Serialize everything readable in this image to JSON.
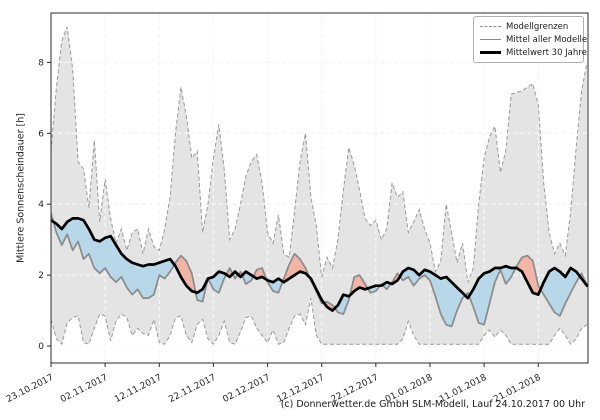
{
  "figure": {
    "background": "#ffffff",
    "ylabel": "Mittlere Sonnenscheindauer [h]",
    "footer": "(c) Donnerwetter.de GmbH SLM-Modell, Lauf 24.10.2017 00 Uhr"
  },
  "legend": {
    "position": "upper right",
    "items": [
      {
        "label": "Modellgrenzen",
        "style": "dashed-gray"
      },
      {
        "label": "Mittel aller Modelle",
        "style": "solid-gray"
      },
      {
        "label": "Mittelwert 30 Jahre",
        "style": "solid-black-bold"
      }
    ]
  },
  "colors": {
    "band_fill": "#e4e4e4",
    "band_edge_dashed": "#999999",
    "above_mean_fill": "#f1b5a7",
    "below_mean_fill": "#b8d7e8",
    "model_mean_line": "#8a8a8a",
    "climate_mean_line": "#000000",
    "grid": "#d6d6d6",
    "spine": "#2b2b2b"
  },
  "chart_data": {
    "type": "line",
    "title": "",
    "xlabel": "",
    "ylabel": "Mittlere Sonnenscheindauer [h]",
    "grid": true,
    "legend_position": "upper right",
    "ylim": [
      -0.5,
      9.4
    ],
    "y_ticks": [
      0,
      2,
      4,
      6,
      8
    ],
    "x_start_date": "23.10.2017",
    "x_resolution": "daily",
    "x_tick_days": [
      0,
      10,
      20,
      30,
      40,
      50,
      60,
      70,
      80,
      90
    ],
    "x_tick_labels": [
      "23.10.2017",
      "02.11.2017",
      "12.11.2017",
      "22.11.2017",
      "02.12.2017",
      "12.12.2017",
      "22.12.2017",
      "01.01.2018",
      "11.01.2018",
      "21.01.2018"
    ],
    "series": [
      {
        "name": "Modellgrenzen (obere Grenze)",
        "style": "dashed",
        "color": "#999999",
        "values": [
          5.5,
          7.3,
          8.6,
          9.0,
          7.8,
          5.2,
          5.0,
          3.9,
          5.8,
          3.5,
          4.7,
          3.6,
          2.9,
          3.3,
          2.7,
          3.2,
          3.3,
          2.6,
          3.3,
          2.8,
          2.7,
          3.3,
          4.2,
          6.0,
          7.3,
          6.5,
          5.3,
          5.5,
          3.2,
          4.0,
          5.3,
          6.25,
          5.0,
          3.0,
          3.3,
          4.0,
          4.8,
          5.2,
          5.4,
          4.6,
          3.2,
          2.9,
          3.7,
          2.6,
          2.5,
          3.8,
          5.2,
          6.0,
          4.2,
          3.4,
          1.95,
          2.5,
          2.2,
          3.0,
          4.4,
          5.6,
          5.1,
          4.4,
          3.6,
          3.4,
          3.55,
          3.0,
          3.3,
          4.6,
          4.2,
          4.35,
          3.2,
          3.5,
          3.85,
          3.3,
          2.9,
          2.1,
          2.4,
          4.0,
          3.2,
          2.35,
          2.9,
          1.8,
          2.2,
          4.0,
          5.3,
          5.9,
          6.2,
          4.9,
          5.5,
          7.1,
          7.15,
          7.2,
          7.3,
          7.4,
          6.8,
          4.6,
          3.2,
          2.6,
          2.9,
          2.55,
          3.8,
          5.6,
          7.2,
          8.0
        ]
      },
      {
        "name": "Modellgrenzen (untere Grenze)",
        "style": "dashed",
        "color": "#999999",
        "values": [
          0.75,
          0.2,
          0.05,
          0.65,
          0.8,
          0.85,
          0.1,
          0.05,
          0.5,
          0.9,
          0.85,
          0.15,
          0.7,
          0.9,
          0.8,
          0.3,
          0.5,
          0.35,
          0.3,
          0.75,
          0.1,
          0.05,
          0.3,
          0.8,
          0.85,
          0.3,
          0.1,
          0.6,
          0.75,
          0.2,
          0.05,
          0.3,
          0.7,
          0.1,
          0.05,
          0.4,
          0.8,
          0.85,
          0.5,
          0.3,
          0.1,
          0.45,
          0.05,
          0.1,
          0.5,
          0.85,
          0.9,
          0.6,
          1.35,
          0.3,
          0.05,
          0.05,
          0.05,
          0.05,
          0.05,
          0.05,
          0.05,
          0.05,
          0.05,
          0.05,
          0.05,
          0.05,
          0.05,
          0.05,
          0.05,
          0.2,
          0.7,
          0.3,
          0.05,
          0.05,
          0.05,
          0.05,
          0.05,
          0.05,
          0.05,
          0.05,
          0.05,
          0.05,
          0.05,
          0.05,
          0.3,
          0.45,
          0.25,
          0.45,
          0.3,
          0.05,
          0.05,
          0.05,
          0.05,
          0.05,
          0.05,
          0.05,
          0.05,
          0.3,
          0.5,
          0.3,
          0.05,
          0.2,
          0.5,
          0.6
        ]
      },
      {
        "name": "Mittel aller Modelle",
        "style": "solid",
        "color": "#8a8a8a",
        "values": [
          3.75,
          3.2,
          2.85,
          3.15,
          2.7,
          2.95,
          2.45,
          2.6,
          2.2,
          2.05,
          2.2,
          1.95,
          1.8,
          1.95,
          1.65,
          1.45,
          1.6,
          1.35,
          1.35,
          1.45,
          2.0,
          1.9,
          2.1,
          2.35,
          2.55,
          2.4,
          2.05,
          1.3,
          1.25,
          1.9,
          1.6,
          1.5,
          1.9,
          2.2,
          1.9,
          2.1,
          1.75,
          1.85,
          2.15,
          2.2,
          1.8,
          1.55,
          1.5,
          1.9,
          2.3,
          2.6,
          2.45,
          2.2,
          1.85,
          1.55,
          1.2,
          1.25,
          1.15,
          0.95,
          0.9,
          1.3,
          1.95,
          2.0,
          1.75,
          1.5,
          1.55,
          1.75,
          1.6,
          1.8,
          2.05,
          1.85,
          1.95,
          1.7,
          1.9,
          2.0,
          1.85,
          1.4,
          0.9,
          0.6,
          0.55,
          1.0,
          1.35,
          1.5,
          1.1,
          0.65,
          0.6,
          1.2,
          1.8,
          2.15,
          1.75,
          1.95,
          2.25,
          2.5,
          2.55,
          2.4,
          1.7,
          1.45,
          1.2,
          0.95,
          0.85,
          1.2,
          1.5,
          1.8,
          2.05,
          1.7
        ]
      },
      {
        "name": "Mittelwert 30 Jahre",
        "style": "solid-bold",
        "color": "#000000",
        "values": [
          3.55,
          3.45,
          3.3,
          3.5,
          3.6,
          3.6,
          3.55,
          3.3,
          3.0,
          2.95,
          3.05,
          3.1,
          2.85,
          2.6,
          2.45,
          2.35,
          2.3,
          2.25,
          2.3,
          2.3,
          2.35,
          2.4,
          2.45,
          2.25,
          1.95,
          1.7,
          1.55,
          1.5,
          1.6,
          1.9,
          1.95,
          2.1,
          2.05,
          1.95,
          2.1,
          1.95,
          2.1,
          2.0,
          1.9,
          1.95,
          1.85,
          1.8,
          1.9,
          1.8,
          1.9,
          2.0,
          2.1,
          2.05,
          1.9,
          1.6,
          1.3,
          1.1,
          1.0,
          1.15,
          1.45,
          1.4,
          1.55,
          1.65,
          1.6,
          1.65,
          1.7,
          1.7,
          1.8,
          1.75,
          1.85,
          2.1,
          2.2,
          2.15,
          2.0,
          2.15,
          2.1,
          2.0,
          1.9,
          1.95,
          1.8,
          1.65,
          1.5,
          1.35,
          1.6,
          1.9,
          2.05,
          2.1,
          2.2,
          2.2,
          2.25,
          2.2,
          2.2,
          2.1,
          1.8,
          1.5,
          1.45,
          1.8,
          2.1,
          2.2,
          2.1,
          1.95,
          2.2,
          2.1,
          1.9,
          1.7
        ]
      }
    ],
    "fills": [
      {
        "name": "Modellbereich",
        "between": [
          "obere Grenze",
          "untere Grenze"
        ],
        "color": "#e4e4e4"
      },
      {
        "name": "Modelle ueber Mittelwert",
        "between": [
          "Mittel aller Modelle",
          "Mittelwert 30 Jahre"
        ],
        "condition": "model > climate",
        "color": "#f1b5a7"
      },
      {
        "name": "Modelle unter Mittelwert",
        "between": [
          "Mittel aller Modelle",
          "Mittelwert 30 Jahre"
        ],
        "condition": "model < climate",
        "color": "#b8d7e8"
      }
    ]
  }
}
